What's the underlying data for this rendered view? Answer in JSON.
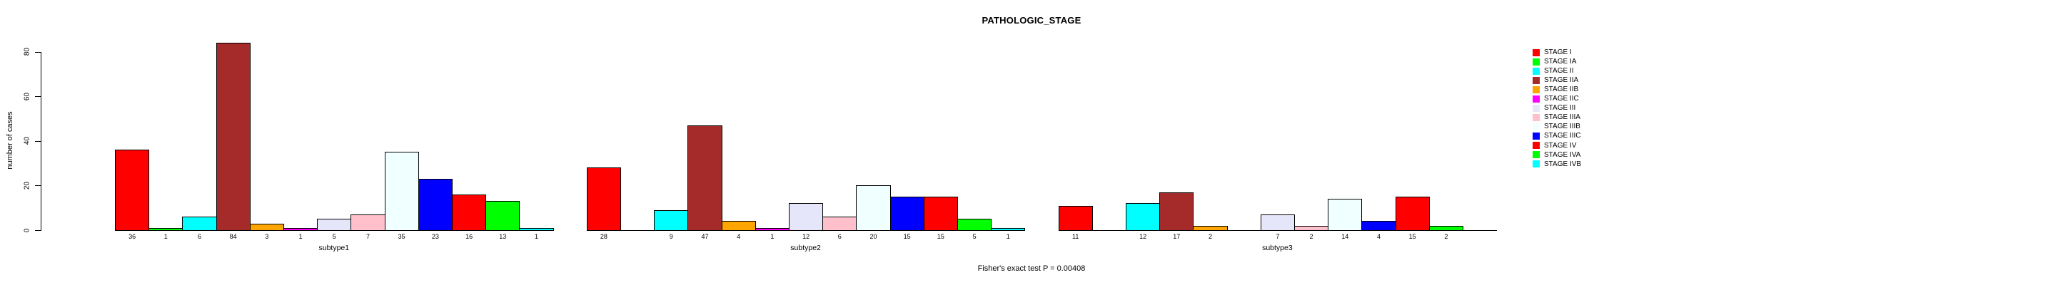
{
  "title": "PATHOLOGIC_STAGE",
  "ylabel": "number of cases",
  "footer": "Fisher's exact test P = 0.00408",
  "chart_data": {
    "type": "bar",
    "title": "PATHOLOGIC_STAGE",
    "ylabel": "number of cases",
    "xlabel": "",
    "yticks": [
      0,
      20,
      40,
      60,
      80
    ],
    "ylim": [
      0,
      84
    ],
    "grid": false,
    "legend_position": "right-outside",
    "annotation": "Fisher's exact test P = 0.00408",
    "stages": [
      {
        "label": "STAGE I",
        "color": "#FF0000"
      },
      {
        "label": "STAGE IA",
        "color": "#00FF00"
      },
      {
        "label": "STAGE II",
        "color": "#00FFFF"
      },
      {
        "label": "STAGE IIA",
        "color": "#A52A2A"
      },
      {
        "label": "STAGE IIB",
        "color": "#FFA500"
      },
      {
        "label": "STAGE IIC",
        "color": "#FF00FF"
      },
      {
        "label": "STAGE III",
        "color": "#E6E6FA"
      },
      {
        "label": "STAGE IIIA",
        "color": "#FFC0CB"
      },
      {
        "label": "STAGE IIIB",
        "color": "#F0FFFF"
      },
      {
        "label": "STAGE IIIC",
        "color": "#0000FF"
      },
      {
        "label": "STAGE IV",
        "color": "#FF0000"
      },
      {
        "label": "STAGE IVA",
        "color": "#00FF00"
      },
      {
        "label": "STAGE IVB",
        "color": "#00FFFF"
      }
    ],
    "groups": [
      {
        "label": "subtype1",
        "values": [
          36,
          1,
          6,
          84,
          3,
          1,
          5,
          7,
          35,
          23,
          16,
          13,
          1
        ]
      },
      {
        "label": "subtype2",
        "values": [
          28,
          0,
          9,
          47,
          4,
          1,
          12,
          6,
          20,
          15,
          15,
          5,
          1
        ]
      },
      {
        "label": "subtype3",
        "values": [
          11,
          0,
          12,
          17,
          2,
          0,
          7,
          2,
          14,
          4,
          15,
          2,
          0
        ]
      }
    ]
  }
}
